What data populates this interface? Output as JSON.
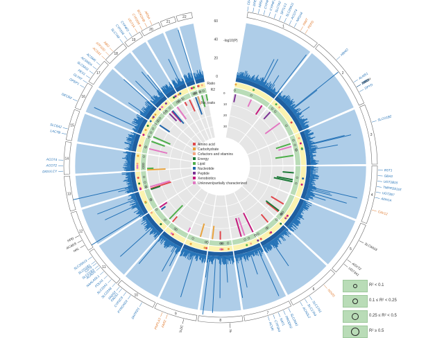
{
  "chart_data": {
    "type": "circular-manhattan",
    "title": "",
    "axis_label": "-log10(P)",
    "axis_ticks": [
      "60",
      "40",
      "20",
      "0"
    ],
    "ring_labels": [
      "Ratio",
      "R2",
      "No. traits"
    ],
    "count_ticks": [
      "0",
      "10",
      "20",
      "30"
    ],
    "chromosomes": [
      "1",
      "2",
      "3",
      "4",
      "5",
      "6",
      "7",
      "8",
      "9",
      "10",
      "11",
      "12",
      "13",
      "14",
      "15",
      "16",
      "17",
      "18",
      "19",
      "20",
      "21",
      "22"
    ],
    "superpathways": [
      {
        "name": "Amino acid",
        "color": "#e0474c"
      },
      {
        "name": "Carbohydrate",
        "color": "#e8a33d"
      },
      {
        "name": "Cofactors and vitamins",
        "color": "#f4a582"
      },
      {
        "name": "Energy",
        "color": "#1b7837"
      },
      {
        "name": "Lipid",
        "color": "#4daf4a"
      },
      {
        "name": "Nucleotide",
        "color": "#2166ac"
      },
      {
        "name": "Peptide",
        "color": "#7b3294"
      },
      {
        "name": "Xenobiotics",
        "color": "#c51b7d"
      },
      {
        "name": "Unknown/partially characterized",
        "color": "#e377c2"
      }
    ],
    "r2_legend": [
      "R² < 0.1",
      "0.1 ≤ R² < 0.25",
      "0.25 ≤ R² < 0.5",
      "R² ≥ 0.5"
    ],
    "gene_labels": [
      {
        "chr": "1",
        "genes": [
          "CD4",
          "DPEP2",
          "NR5A2",
          "CYP4F2",
          "CYP4F11",
          "SLC7A2",
          "SPTLC1",
          "SLC25A11",
          "ACOT4",
          "NR1H4"
        ],
        "color": "blue"
      },
      {
        "chr": "1b",
        "genes": [
          "INMT",
          "PEPD"
        ],
        "color": "orange"
      },
      {
        "chr": "2",
        "genes": [
          "HBNO"
        ],
        "color": "blue"
      },
      {
        "chr": "2b",
        "genes": [
          "NAT8"
        ],
        "color": "black"
      },
      {
        "chr": "2c",
        "genes": [
          "LCT"
        ],
        "color": "blue"
      },
      {
        "chr": "2d",
        "genes": [
          "HIBCH"
        ],
        "color": "black"
      },
      {
        "chr": "2e",
        "genes": [
          "ALMS1",
          "CPS1",
          "DPYD"
        ],
        "color": "blue"
      },
      {
        "chr": "3",
        "genes": [
          "SLCO1B2"
        ],
        "color": "blue"
      },
      {
        "chr": "4",
        "genes": [
          "BST1",
          "GBA3",
          "UGT2B15",
          "TMPRSS11E",
          "UGT2B7",
          "ADH1A"
        ],
        "color": "blue"
      },
      {
        "chr": "4b",
        "genes": [
          "CAV12"
        ],
        "color": "orange"
      },
      {
        "chr": "5",
        "genes": [
          "SLC6A18"
        ],
        "color": "black"
      },
      {
        "chr": "5b",
        "genes": [
          "AGXT2",
          "UGT3A1"
        ],
        "color": "black"
      },
      {
        "chr": "6",
        "genes": [
          "NOOS"
        ],
        "color": "orange"
      },
      {
        "chr": "6b",
        "genes": [
          "SLC17A1",
          "SLC17A4",
          "ACADL2"
        ],
        "color": "blue"
      },
      {
        "chr": "7",
        "genes": [
          "SLC26A1",
          "PRODH2",
          "NAT1",
          "CYP3A4",
          "ACVR"
        ],
        "color": "blue"
      },
      {
        "chr": "8",
        "genes": [
          "NAT2"
        ],
        "color": "black"
      },
      {
        "chr": "9",
        "genes": [
          "GLDC"
        ],
        "color": "black"
      },
      {
        "chr": "9b",
        "genes": [
          "FAR2",
          "PNPLA3"
        ],
        "color": "orange"
      },
      {
        "chr": "10",
        "genes": [
          "DHTKD1"
        ],
        "color": "blue"
      },
      {
        "chr": "10b",
        "genes": [
          "PYROXD2",
          "CYP2C9",
          "FADS1"
        ],
        "color": "blue"
      },
      {
        "chr": "11",
        "genes": [
          "FADS2",
          "SLC22A8",
          "SLC22A1",
          "FOLH1",
          "NAALADL1",
          "ACADS",
          "CD79"
        ],
        "color": "blue"
      },
      {
        "chr": "11b",
        "genes": [
          "SLCO1B3",
          "SLCO1B1",
          "SLC25A13"
        ],
        "color": "blue"
      },
      {
        "chr": "12",
        "genes": [
          "HAL",
          "ACADS",
          "HPD"
        ],
        "color": "black"
      },
      {
        "chr": "14",
        "genes": [
          "DIO1/LCY",
          "ACOT2",
          "ACOT4"
        ],
        "color": "blue"
      },
      {
        "chr": "15",
        "genes": [
          "LACTB",
          "SLC6A2"
        ],
        "color": "blue"
      },
      {
        "chr": "16",
        "genes": [
          "DECR2"
        ],
        "color": "blue"
      },
      {
        "chr": "17",
        "genes": [
          "OPEP1",
          "GLYAT",
          "PEX1",
          "SLC5A11",
          "ACSM2A",
          "ACSM5"
        ],
        "color": "blue"
      },
      {
        "chr": "18",
        "genes": [
          "ACSS1",
          "ATP10D",
          "ABO"
        ],
        "color": "orange"
      },
      {
        "chr": "19",
        "genes": [
          "SLC7A9",
          "CYP2A6",
          "CYP4F2"
        ],
        "color": "blue"
      },
      {
        "chr": "20",
        "genes": [
          "UGT1A",
          "CYP2D6",
          "BCKDHB",
          "ARSA"
        ],
        "color": "orange"
      }
    ]
  }
}
